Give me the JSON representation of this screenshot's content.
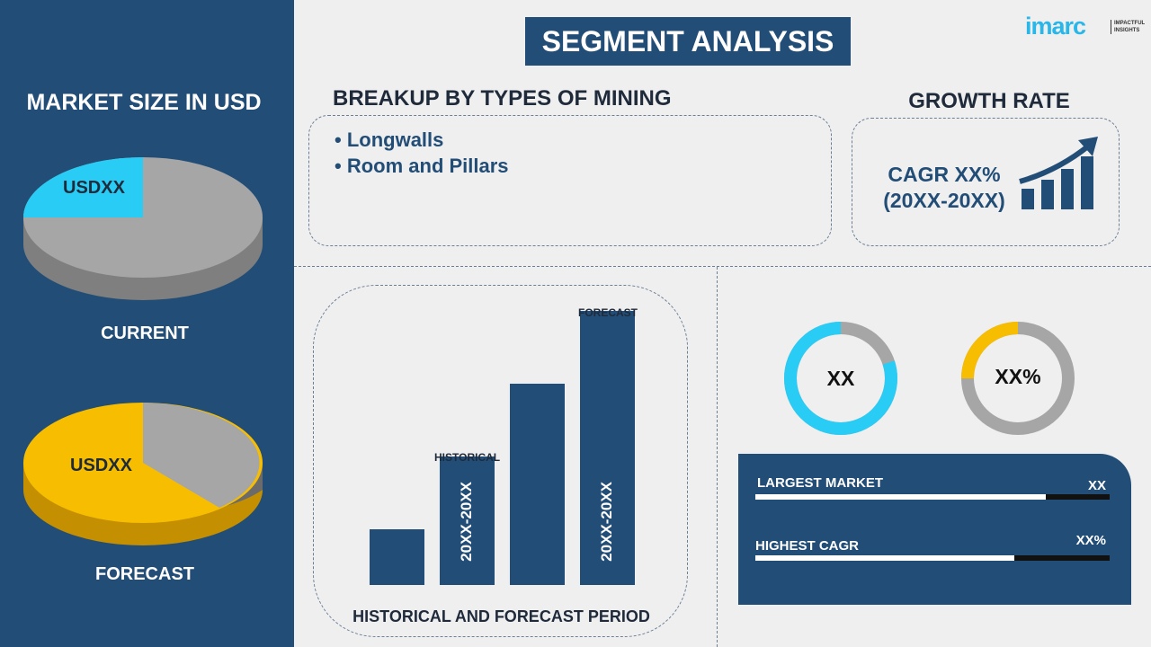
{
  "left_panel": {
    "title": "MARKET SIZE IN USD",
    "current": {
      "value": "USDXX",
      "label": "CURRENT"
    },
    "forecast": {
      "value": "USDXX",
      "label": "FORECAST"
    }
  },
  "header": {
    "title": "SEGMENT ANALYSIS",
    "logo": "imarc",
    "logo_tagline": "IMPACTFUL INSIGHTS"
  },
  "breakup": {
    "title": "BREAKUP BY TYPES OF MINING",
    "items": [
      "Longwalls",
      "Room and Pillars"
    ]
  },
  "growth": {
    "title": "GROWTH RATE",
    "cagr": "CAGR XX%",
    "period": "(20XX-20XX)"
  },
  "bar_section": {
    "historical": "HISTORICAL",
    "forecast": "FORECAST",
    "hist_period": "20XX-20XX",
    "fore_period": "20XX-20XX",
    "xlabel": "HISTORICAL AND FORECAST PERIOD"
  },
  "donuts": [
    {
      "label": "XX",
      "fill_pct": 80,
      "color": "#29ccf5"
    },
    {
      "label": "XX%",
      "fill_pct": 25,
      "color": "#f7bd00"
    }
  ],
  "stats": [
    {
      "label": "LARGEST MARKET",
      "value": "XX",
      "fill_pct": 82
    },
    {
      "label": "HIGHEST CAGR",
      "value": "XX%",
      "fill_pct": 73
    }
  ],
  "colors": {
    "navy": "#224d76",
    "cyan": "#29ccf5",
    "yellow": "#f7bd00",
    "gray": "#a6a6a6"
  }
}
